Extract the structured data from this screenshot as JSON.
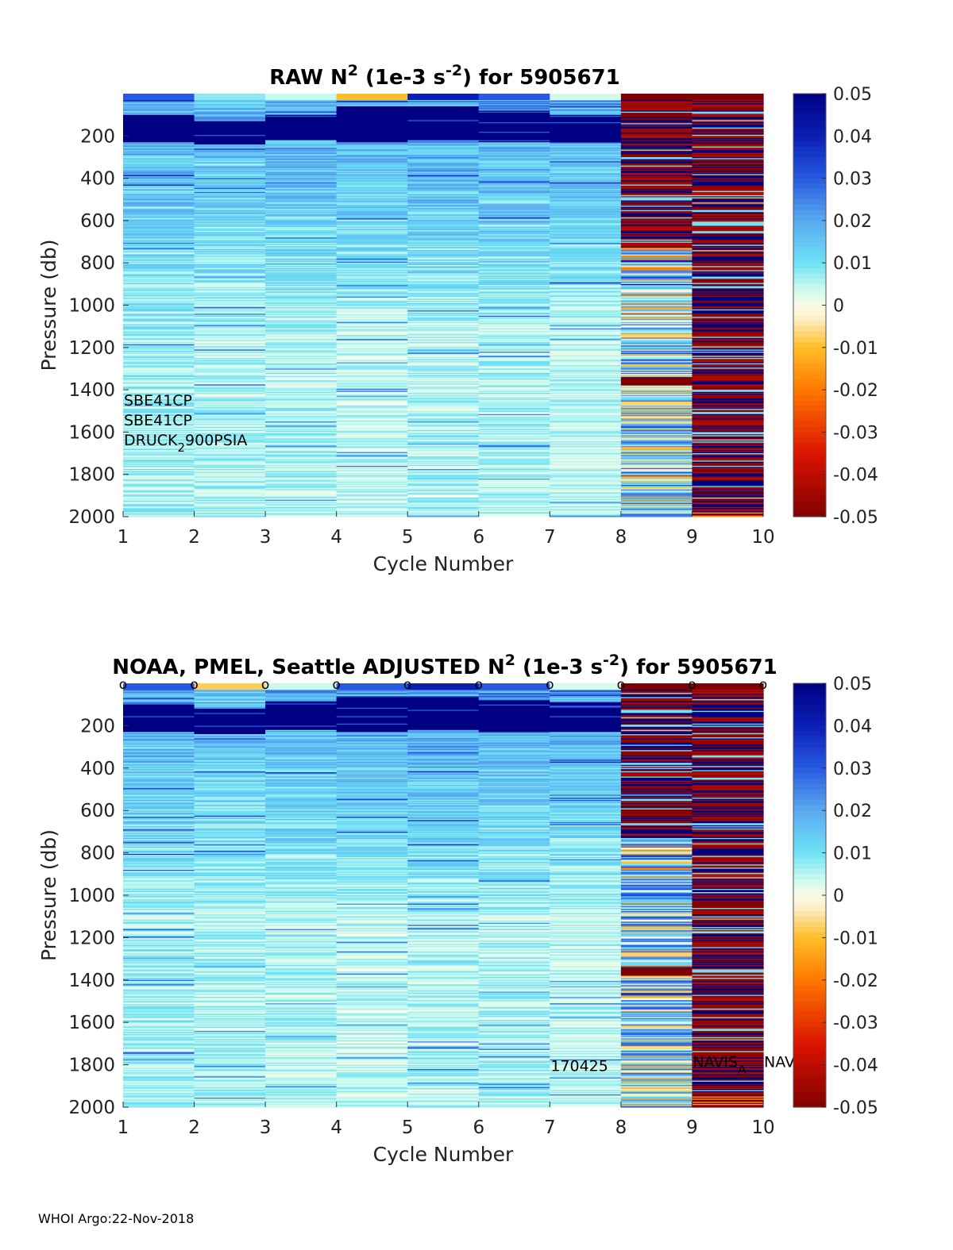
{
  "chart_data": [
    {
      "type": "heatmap",
      "title": "RAW N2 (1e-3 s-2) for 5905671",
      "title_parts": {
        "pre": "RAW N",
        "sup1": "2",
        "mid": " (1e-3 s",
        "sup2": "-2",
        "post": ") for 5905671"
      },
      "xlabel": "Cycle Number",
      "ylabel": "Pressure (db)",
      "xlim": [
        1,
        10
      ],
      "ylim": [
        2000,
        0
      ],
      "x_ticks": [
        1,
        2,
        3,
        4,
        5,
        6,
        7,
        8,
        9,
        10
      ],
      "y_ticks": [
        200,
        400,
        600,
        800,
        1000,
        1200,
        1400,
        1600,
        1800,
        2000
      ],
      "colorbar": {
        "clim": [
          -0.05,
          0.05
        ],
        "ticks": [
          "0.05",
          "0.04",
          "0.03",
          "0.02",
          "0.01",
          "0",
          "-0.01",
          "-0.02",
          "-0.03",
          "-0.04",
          "-0.05"
        ]
      },
      "annotations": [
        {
          "text": "SBE41CP",
          "x": 1.0,
          "y": 1475
        },
        {
          "text": "SBE41CP",
          "x": 1.0,
          "y": 1568
        },
        {
          "parts": [
            "DRUCK",
            "2",
            "900PSIA"
          ],
          "text": "DRUCK_2900PSIA",
          "x": 1.0,
          "y": 1662
        }
      ],
      "cycles": [
        {
          "cycle": 1,
          "surface_layer": 0.03,
          "mixed_layer": [
            100,
            230
          ],
          "mixed_value": 0.06,
          "upper_mean": 0.018,
          "deep_mean": 0.006,
          "spread": 0.014
        },
        {
          "cycle": 2,
          "surface_layer": 0.008,
          "mixed_layer": [
            130,
            240
          ],
          "mixed_value": 0.06,
          "upper_mean": 0.017,
          "deep_mean": 0.005,
          "spread": 0.013
        },
        {
          "cycle": 3,
          "surface_layer": 0.004,
          "mixed_layer": [
            100,
            220
          ],
          "mixed_value": 0.06,
          "upper_mean": 0.019,
          "deep_mean": 0.005,
          "spread": 0.013
        },
        {
          "cycle": 4,
          "surface_layer": -0.01,
          "mixed_layer": [
            60,
            230
          ],
          "mixed_value": 0.06,
          "upper_mean": 0.02,
          "deep_mean": 0.004,
          "spread": 0.012
        },
        {
          "cycle": 5,
          "surface_layer": 0.04,
          "mixed_layer": [
            60,
            220
          ],
          "mixed_value": 0.06,
          "upper_mean": 0.021,
          "deep_mean": 0.005,
          "spread": 0.014
        },
        {
          "cycle": 6,
          "surface_layer": 0.03,
          "mixed_layer": [
            80,
            230
          ],
          "mixed_value": 0.06,
          "upper_mean": 0.02,
          "deep_mean": 0.005,
          "spread": 0.014
        },
        {
          "cycle": 7,
          "surface_layer": 0.003,
          "mixed_layer": [
            100,
            230
          ],
          "mixed_value": 0.06,
          "upper_mean": 0.019,
          "deep_mean": 0.004,
          "spread": 0.012
        },
        {
          "cycle": 8,
          "surface_layer": -0.05,
          "mixed_layer": [
            180,
            700
          ],
          "mixed_value": 0.0,
          "upper_mean": 0.0,
          "deep_mean": 0.006,
          "spread": 0.06,
          "bimodal_to": 730,
          "dark_band": [
            1340,
            1380
          ]
        },
        {
          "cycle": 9,
          "surface_layer": -0.05,
          "mixed_layer": [
            0,
            0
          ],
          "mixed_value": 0.0,
          "upper_mean": 0.0,
          "deep_mean": 0.0,
          "spread": 0.06,
          "bimodal_to": 1980,
          "bottom_band": [
            1960,
            2000
          ]
        }
      ]
    },
    {
      "type": "heatmap",
      "title": "NOAA, PMEL, Seattle  ADJUSTED N2 (1e-3 s-2) for 5905671",
      "title_parts": {
        "pre": "NOAA, PMEL, Seattle  ADJUSTED N",
        "sup1": "2",
        "mid": " (1e-3 s",
        "sup2": "-2",
        "post": ") for 5905671"
      },
      "xlabel": "Cycle Number",
      "ylabel": "Pressure (db)",
      "xlim": [
        1,
        10
      ],
      "ylim": [
        2000,
        0
      ],
      "x_ticks": [
        1,
        2,
        3,
        4,
        5,
        6,
        7,
        8,
        9,
        10
      ],
      "y_ticks": [
        200,
        400,
        600,
        800,
        1000,
        1200,
        1400,
        1600,
        1800,
        2000
      ],
      "colorbar": {
        "clim": [
          -0.05,
          0.05
        ],
        "ticks": [
          "0.05",
          "0.04",
          "0.03",
          "0.02",
          "0.01",
          "0",
          "-0.01",
          "-0.02",
          "-0.03",
          "-0.04",
          "-0.05"
        ]
      },
      "markers": {
        "symbol": "o",
        "x": [
          1,
          2,
          3,
          4,
          5,
          6,
          7,
          8,
          9,
          10
        ],
        "y": 0
      },
      "annotations": [
        {
          "text": "170425",
          "x": 7.0,
          "y": 1830
        },
        {
          "parts": [
            "NAVIS",
            "A"
          ],
          "text": "NAVIS_A",
          "x": 9.0,
          "y": 1810
        },
        {
          "parts": [
            "NAVIS",
            "A"
          ],
          "text": "NAVIS_A",
          "x": 10.0,
          "y": 1810
        }
      ],
      "cycles": [
        {
          "cycle": 1,
          "surface_layer": 0.03,
          "mixed_layer": [
            100,
            230
          ],
          "mixed_value": 0.06,
          "upper_mean": 0.018,
          "deep_mean": 0.006,
          "spread": 0.014
        },
        {
          "cycle": 2,
          "surface_layer": -0.008,
          "mixed_layer": [
            120,
            240
          ],
          "mixed_value": 0.06,
          "upper_mean": 0.017,
          "deep_mean": 0.005,
          "spread": 0.013
        },
        {
          "cycle": 3,
          "surface_layer": 0.004,
          "mixed_layer": [
            90,
            220
          ],
          "mixed_value": 0.06,
          "upper_mean": 0.019,
          "deep_mean": 0.005,
          "spread": 0.013
        },
        {
          "cycle": 4,
          "surface_layer": 0.03,
          "mixed_layer": [
            60,
            230
          ],
          "mixed_value": 0.06,
          "upper_mean": 0.02,
          "deep_mean": 0.004,
          "spread": 0.012
        },
        {
          "cycle": 5,
          "surface_layer": 0.04,
          "mixed_layer": [
            60,
            220
          ],
          "mixed_value": 0.06,
          "upper_mean": 0.021,
          "deep_mean": 0.005,
          "spread": 0.014
        },
        {
          "cycle": 6,
          "surface_layer": 0.03,
          "mixed_layer": [
            80,
            230
          ],
          "mixed_value": 0.06,
          "upper_mean": 0.02,
          "deep_mean": 0.005,
          "spread": 0.014
        },
        {
          "cycle": 7,
          "surface_layer": 0.003,
          "mixed_layer": [
            90,
            230
          ],
          "mixed_value": 0.06,
          "upper_mean": 0.019,
          "deep_mean": 0.004,
          "spread": 0.012
        },
        {
          "cycle": 8,
          "surface_layer": -0.05,
          "mixed_layer": [
            180,
            700
          ],
          "mixed_value": 0.0,
          "upper_mean": 0.0,
          "deep_mean": 0.006,
          "spread": 0.06,
          "bimodal_to": 730,
          "dark_band": [
            1340,
            1380
          ]
        },
        {
          "cycle": 9,
          "surface_layer": -0.05,
          "mixed_layer": [
            0,
            0
          ],
          "mixed_value": 0.0,
          "upper_mean": 0.0,
          "deep_mean": 0.0,
          "spread": 0.06,
          "bimodal_to": 1940,
          "bottom_band": [
            1940,
            2000
          ]
        }
      ]
    }
  ],
  "footer": "WHOI Argo:22-Nov-2018"
}
